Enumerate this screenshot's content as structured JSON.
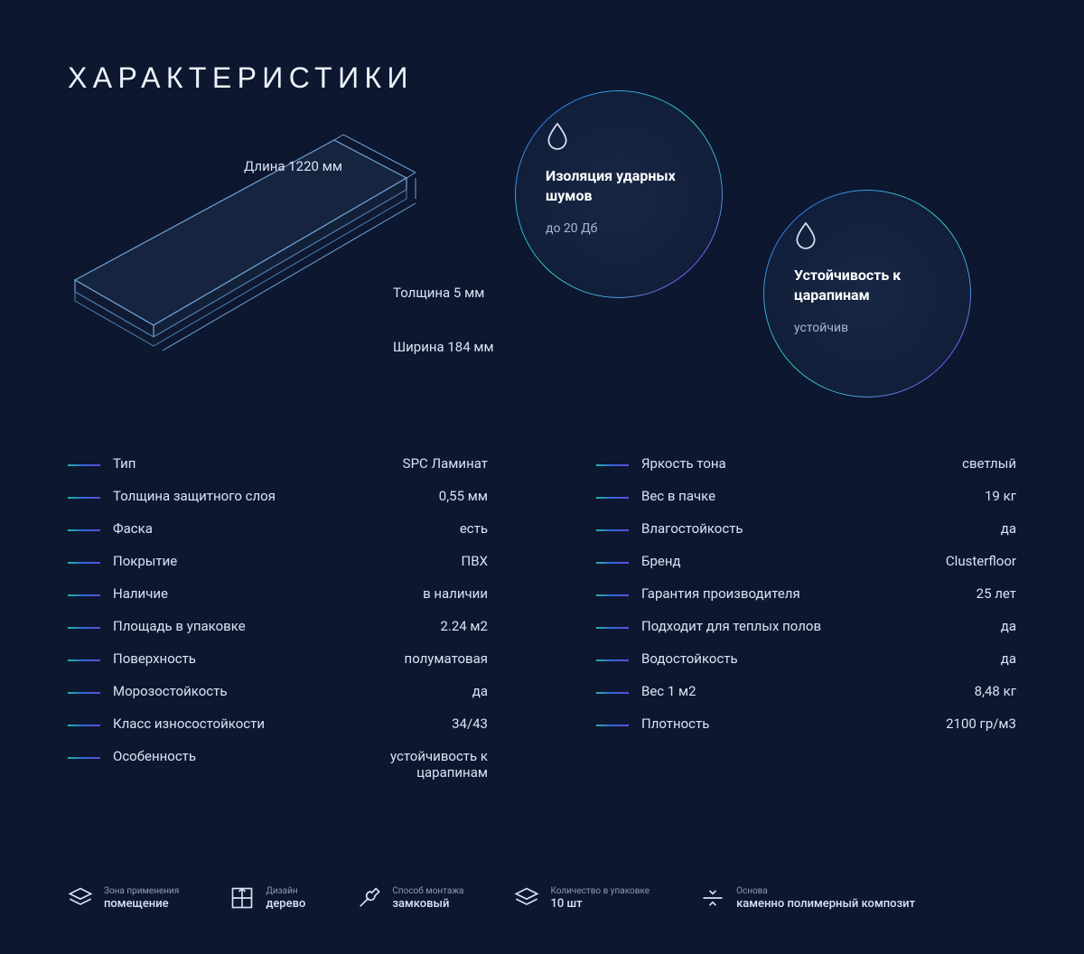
{
  "colors": {
    "bg": "#0d1730",
    "text": "#d8e3f5",
    "text_dim": "#a8b5cf",
    "title": "#eef3fb",
    "gradient_start": "#2ed9c3",
    "gradient_mid": "#3a79ff",
    "gradient_end": "#7b59ff",
    "board_line": "#6fa3d8",
    "board_fill": "#17243f"
  },
  "title": "ХАРАКТЕРИСТИКИ",
  "board": {
    "length_label": "Длина 1220 мм",
    "thickness_label": "Толщина 5 мм",
    "width_label": "Ширина 184 мм"
  },
  "feature_circles": [
    {
      "icon": "drop",
      "title": "Изоляция ударных шумов",
      "sub": "до 20 Дб"
    },
    {
      "icon": "drop",
      "title": "Устойчивость к царапинам",
      "sub": "устойчив"
    }
  ],
  "specs_left": [
    {
      "label": "Тип",
      "value": "SPC Ламинат"
    },
    {
      "label": "Толщина защитного слоя",
      "value": "0,55 мм"
    },
    {
      "label": "Фаска",
      "value": "есть"
    },
    {
      "label": "Покрытие",
      "value": "ПВХ"
    },
    {
      "label": "Наличие",
      "value": "в наличии"
    },
    {
      "label": "Площадь в упаковке",
      "value": "2.24 м2"
    },
    {
      "label": "Поверхность",
      "value": "полуматовая"
    },
    {
      "label": "Морозостойкость",
      "value": "да"
    },
    {
      "label": "Класс износостойкости",
      "value": "34/43"
    },
    {
      "label": "Особенность",
      "value": "устойчивость к царапинам"
    }
  ],
  "specs_right": [
    {
      "label": "Яркость тона",
      "value": "светлый"
    },
    {
      "label": "Вес в пачке",
      "value": "19 кг"
    },
    {
      "label": "Влагостойкость",
      "value": "да"
    },
    {
      "label": "Бренд",
      "value": "Clusterfloor"
    },
    {
      "label": "Гарантия производителя",
      "value": "25 лет"
    },
    {
      "label": "Подходит для теплых полов",
      "value": "да"
    },
    {
      "label": "Водостойкость",
      "value": "да"
    },
    {
      "label": "Вес 1 м2",
      "value": "8,48 кг"
    },
    {
      "label": "Плотность",
      "value": "2100 гр/м3"
    }
  ],
  "bottom": [
    {
      "icon": "layers",
      "top": "Зона применения",
      "bot": "помещение"
    },
    {
      "icon": "grid",
      "top": "Дизайн",
      "bot": "дерево"
    },
    {
      "icon": "wrench",
      "top": "Способ монтажа",
      "bot": "замковый"
    },
    {
      "icon": "layers",
      "top": "Количество в упаковке",
      "bot": "10 шт"
    },
    {
      "icon": "compress",
      "top": "Основа",
      "bot": "каменно полимерный композит"
    }
  ]
}
